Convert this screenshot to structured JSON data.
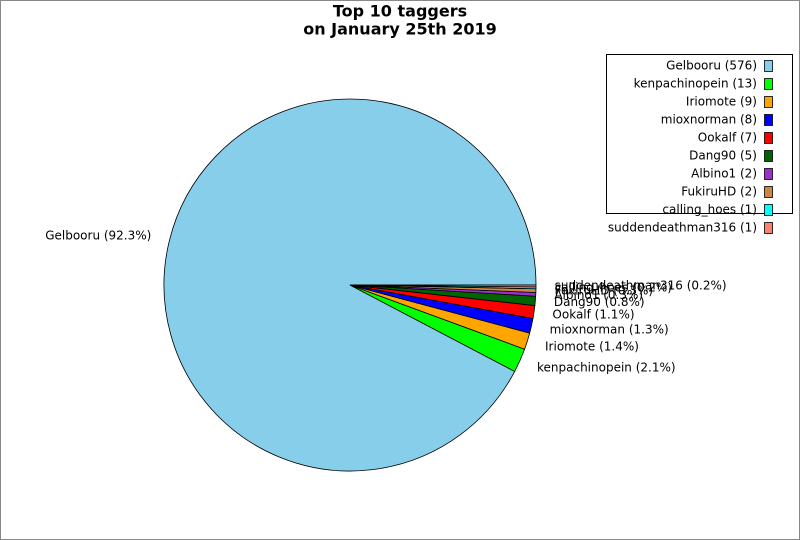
{
  "chart_data": {
    "type": "pie",
    "title": [
      "Top 10 taggers",
      "on January 25th 2019"
    ],
    "legend_labels": [
      "Gelbooru (576)",
      "kenpachinopein (13)",
      "Iriomote (9)",
      "mioxnorman (8)",
      "Ookalf (7)",
      "Dang90 (5)",
      "Albino1 (2)",
      "FukiruHD (2)",
      "calling_hoes (1)",
      "suddendeathman316 (1)"
    ],
    "values": [
      576,
      13,
      9,
      8,
      7,
      5,
      2,
      2,
      1,
      1
    ],
    "value_labels": [
      "Gelbooru (92.3%)",
      "kenpachinopein (2.1%)",
      "Iriomote (1.4%)",
      "mioxnorman (1.3%)",
      "Ookalf (1.1%)",
      "Dang90 (0.8%)",
      "Albino1 (0.3%)",
      "FukiruHD (0.3%)",
      "calling_hoes (0.2%)",
      "suddendeathman316 (0.2%)"
    ],
    "colors": [
      "#87ceeb",
      "#00ff00",
      "#ffa500",
      "#0000ff",
      "#ff0000",
      "#006400",
      "#9932cc",
      "#cd853f",
      "#00ffff",
      "#fa8072"
    ],
    "legend": "upper right"
  }
}
